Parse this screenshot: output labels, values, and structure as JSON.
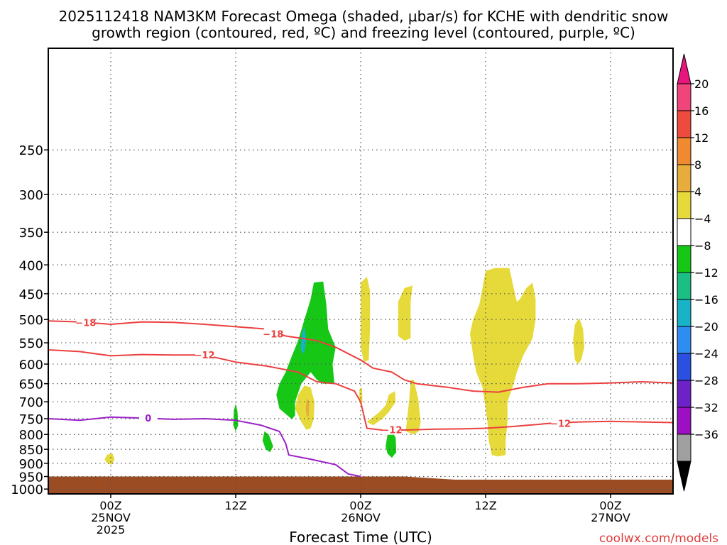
{
  "chart_data": {
    "type": "contour",
    "title_line1": "2025112418 NAM3KM Forecast Omega (shaded, μbar/s) for KCHE with dendritic snow",
    "title_line2": "growth region (contoured, red, ºC) and freezing level (contoured, purple, ºC)",
    "xlabel": "Forecast Time (UTC)",
    "x_range_hours": [
      -10,
      90
    ],
    "y_range_hPa": [
      165,
      1020
    ],
    "y_ticks": [
      250,
      300,
      350,
      400,
      450,
      500,
      550,
      600,
      650,
      700,
      750,
      800,
      850,
      900,
      950,
      1000
    ],
    "x_ticks": [
      {
        "hour": 0,
        "line1": "00Z",
        "line2": "25NOV",
        "line3": "2025"
      },
      {
        "hour": 20,
        "line1": "12Z",
        "line2": "",
        "line3": ""
      },
      {
        "hour": 40,
        "line1": "00Z",
        "line2": "26NOV",
        "line3": ""
      },
      {
        "hour": 60,
        "line1": "12Z",
        "line2": "",
        "line3": ""
      },
      {
        "hour": 80,
        "line1": "00Z",
        "line2": "27NOV",
        "line3": ""
      }
    ],
    "colorbar": {
      "labels": [
        "20",
        "16",
        "12",
        "8",
        "4",
        "−4",
        "−8",
        "−12",
        "−16",
        "−20",
        "−24",
        "−28",
        "−32",
        "−36"
      ],
      "colors": [
        "#f0457a",
        "#ee4a3d",
        "#f08a30",
        "#e6ac3c",
        "#e6d93a",
        "#ffffff",
        "#16c716",
        "#1bbf84",
        "#19b3c8",
        "#2f8cf0",
        "#2b4fe0",
        "#6d22c8",
        "#9a10c2",
        "#a0a0a0"
      ],
      "top_arrow_color": "#e8157d",
      "bottom_arrow_color": "#000000"
    },
    "ground_color": "#9c4c23",
    "contours": [
      {
        "name": "dgz-minus18",
        "color": "#ec4040",
        "label": "−18",
        "points": [
          [
            -10,
            503
          ],
          [
            -5,
            505
          ],
          [
            0,
            510
          ],
          [
            5,
            505
          ],
          [
            10,
            506
          ],
          [
            15,
            510
          ],
          [
            20,
            515
          ],
          [
            25,
            520
          ],
          [
            28,
            535
          ],
          [
            33,
            545
          ],
          [
            36,
            560
          ],
          [
            40,
            590
          ],
          [
            42,
            610
          ],
          [
            45,
            620
          ],
          [
            47,
            640
          ],
          [
            49,
            650
          ],
          [
            54,
            660
          ],
          [
            58,
            670
          ],
          [
            62,
            673
          ],
          [
            66,
            660
          ],
          [
            70,
            650
          ],
          [
            75,
            650
          ],
          [
            80,
            648
          ],
          [
            85,
            645
          ],
          [
            90,
            648
          ]
        ],
        "label_points": [
          [
            -4,
            506
          ],
          [
            26,
            530
          ]
        ]
      },
      {
        "name": "dgz-minus12",
        "color": "#ec4040",
        "label": "−12",
        "points": [
          [
            -10,
            566
          ],
          [
            -5,
            570
          ],
          [
            0,
            580
          ],
          [
            5,
            577
          ],
          [
            10,
            578
          ],
          [
            15,
            578
          ],
          [
            20,
            595
          ],
          [
            25,
            605
          ],
          [
            30,
            620
          ],
          [
            33,
            645
          ],
          [
            36,
            650
          ],
          [
            39,
            670
          ],
          [
            40,
            700
          ],
          [
            41,
            780
          ],
          [
            44,
            787
          ],
          [
            48,
            785
          ],
          [
            52,
            783
          ],
          [
            56,
            782
          ],
          [
            60,
            780
          ],
          [
            64,
            775
          ],
          [
            70,
            765
          ],
          [
            75,
            760
          ],
          [
            80,
            758
          ],
          [
            85,
            760
          ],
          [
            90,
            762
          ]
        ],
        "label_points": [
          [
            15,
            578
          ],
          [
            45,
            785
          ],
          [
            72,
            764
          ]
        ]
      },
      {
        "name": "freezing-level",
        "color": "#9a1fc8",
        "label": "0",
        "points": [
          [
            -10,
            750
          ],
          [
            -5,
            755
          ],
          [
            0,
            745
          ],
          [
            5,
            748
          ],
          [
            10,
            752
          ],
          [
            15,
            750
          ],
          [
            20,
            755
          ],
          [
            24,
            770
          ],
          [
            27,
            790
          ],
          [
            28,
            830
          ],
          [
            28.5,
            870
          ],
          [
            32,
            885
          ],
          [
            36,
            905
          ],
          [
            38,
            940
          ],
          [
            40,
            950
          ]
        ],
        "label_points": [
          [
            6,
            748
          ]
        ]
      }
    ],
    "fills": [
      {
        "name": "upward-motion-green-main",
        "color": "#16c716",
        "value": "−4 to −8",
        "points": [
          [
            29,
            752
          ],
          [
            27,
            720
          ],
          [
            26.5,
            680
          ],
          [
            27,
            650
          ],
          [
            28,
            620
          ],
          [
            29,
            580
          ],
          [
            30,
            545
          ],
          [
            31,
            500
          ],
          [
            32,
            460
          ],
          [
            32.5,
            430
          ],
          [
            34,
            428
          ],
          [
            34.5,
            470
          ],
          [
            34.8,
            520
          ],
          [
            36,
            560
          ],
          [
            35.5,
            600
          ],
          [
            35.8,
            650
          ],
          [
            34,
            650
          ],
          [
            33,
            640
          ],
          [
            32,
            620
          ],
          [
            30.5,
            650
          ],
          [
            29.5,
            700
          ],
          [
            29.5,
            740
          ]
        ]
      },
      {
        "name": "upward-motion-cyan-core",
        "color": "#19b3c8",
        "value": "−12 to −16",
        "points": [
          [
            30.4,
            560
          ],
          [
            30.6,
            530
          ],
          [
            31,
            515
          ],
          [
            31.3,
            545
          ],
          [
            31,
            570
          ],
          [
            30.6,
            575
          ]
        ]
      },
      {
        "name": "upward-motion-green-small-1",
        "color": "#16c716",
        "value": "−4 to −8",
        "points": [
          [
            19.6,
            770
          ],
          [
            19.7,
            725
          ],
          [
            20,
            705
          ],
          [
            20.3,
            730
          ],
          [
            20.4,
            770
          ],
          [
            20,
            790
          ]
        ]
      },
      {
        "name": "upward-motion-green-small-2",
        "color": "#16c716",
        "value": "−4 to −8",
        "points": [
          [
            24.3,
            820
          ],
          [
            24.6,
            790
          ],
          [
            25.3,
            800
          ],
          [
            26,
            840
          ],
          [
            25.5,
            860
          ],
          [
            24.8,
            850
          ]
        ]
      },
      {
        "name": "upward-motion-green-small-3",
        "color": "#16c716",
        "value": "−4 to −8",
        "points": [
          [
            44,
            840
          ],
          [
            44.3,
            800
          ],
          [
            45,
            790
          ],
          [
            45.6,
            810
          ],
          [
            45.7,
            860
          ],
          [
            45,
            880
          ],
          [
            44.3,
            865
          ]
        ]
      },
      {
        "name": "downward-yellow-low",
        "color": "#e6d93a",
        "value": "4 to 8",
        "points": [
          [
            -1,
            885
          ],
          [
            -0.5,
            868
          ],
          [
            0.3,
            865
          ],
          [
            0.6,
            885
          ],
          [
            0.2,
            905
          ],
          [
            -0.6,
            900
          ]
        ]
      },
      {
        "name": "downward-yellow-center",
        "color": "#e6d93a",
        "value": "4 to 8",
        "points": [
          [
            30.5,
            760
          ],
          [
            29.5,
            720
          ],
          [
            30,
            680
          ],
          [
            31,
            655
          ],
          [
            32,
            660
          ],
          [
            32.6,
            700
          ],
          [
            32.5,
            750
          ],
          [
            32,
            780
          ],
          [
            31.3,
            785
          ]
        ]
      },
      {
        "name": "downward-orange-center",
        "color": "#e6ac3c",
        "value": "8 to 12",
        "points": [
          [
            31.2,
            720
          ],
          [
            31.4,
            690
          ],
          [
            31.8,
            700
          ],
          [
            31.7,
            740
          ],
          [
            31.4,
            745
          ]
        ]
      },
      {
        "name": "downward-yellow-1",
        "color": "#e6d93a",
        "value": "4 to 8",
        "points": [
          [
            40,
            470
          ],
          [
            40,
            430
          ],
          [
            41,
            420
          ],
          [
            41.5,
            445
          ],
          [
            41.5,
            520
          ],
          [
            41.3,
            590
          ],
          [
            40.5,
            595
          ],
          [
            40,
            560
          ]
        ]
      },
      {
        "name": "downward-yellow-2",
        "color": "#e6d93a",
        "value": "4 to 8",
        "points": [
          [
            46,
            535
          ],
          [
            46,
            465
          ],
          [
            47,
            440
          ],
          [
            48.3,
            435
          ],
          [
            48,
            465
          ],
          [
            48,
            540
          ],
          [
            47,
            545
          ]
        ]
      },
      {
        "name": "downward-yellow-3",
        "color": "#e6d93a",
        "value": "4 to 8",
        "points": [
          [
            39.8,
            700
          ],
          [
            39.8,
            665
          ],
          [
            40.2,
            660
          ],
          [
            40.3,
            700
          ],
          [
            40,
            710
          ]
        ]
      },
      {
        "name": "downward-yellow-4",
        "color": "#e6d93a",
        "value": "4 to 8",
        "points": [
          [
            41,
            760
          ],
          [
            43,
            730
          ],
          [
            44,
            710
          ],
          [
            44.5,
            680
          ],
          [
            45.5,
            670
          ],
          [
            45.6,
            700
          ],
          [
            44.5,
            730
          ],
          [
            43.5,
            750
          ],
          [
            42,
            770
          ]
        ]
      },
      {
        "name": "downward-yellow-5",
        "color": "#e6d93a",
        "value": "4 to 8",
        "points": [
          [
            47.2,
            790
          ],
          [
            47.5,
            740
          ],
          [
            47.8,
            690
          ],
          [
            48,
            640
          ],
          [
            48.5,
            640
          ],
          [
            49.2,
            690
          ],
          [
            49.6,
            760
          ],
          [
            49.3,
            790
          ],
          [
            48.5,
            800
          ]
        ]
      },
      {
        "name": "downward-yellow-big",
        "color": "#e6d93a",
        "value": "4 to 8",
        "points": [
          [
            61,
            870
          ],
          [
            60.5,
            820
          ],
          [
            60.3,
            760
          ],
          [
            60,
            720
          ],
          [
            59.5,
            660
          ],
          [
            58.5,
            620
          ],
          [
            58,
            580
          ],
          [
            57.5,
            530
          ],
          [
            58,
            500
          ],
          [
            59,
            470
          ],
          [
            59.5,
            440
          ],
          [
            60,
            410
          ],
          [
            61.5,
            405
          ],
          [
            63.8,
            405
          ],
          [
            64.5,
            440
          ],
          [
            65,
            465
          ],
          [
            65.5,
            460
          ],
          [
            66.5,
            440
          ],
          [
            67.5,
            430
          ],
          [
            68,
            460
          ],
          [
            68,
            500
          ],
          [
            67.5,
            540
          ],
          [
            66,
            580
          ],
          [
            65,
            620
          ],
          [
            64.5,
            650
          ],
          [
            63.5,
            700
          ],
          [
            63.5,
            760
          ],
          [
            63.2,
            820
          ],
          [
            63.2,
            870
          ],
          [
            62,
            875
          ]
        ]
      },
      {
        "name": "downward-yellow-right",
        "color": "#e6d93a",
        "value": "4 to 8",
        "points": [
          [
            74.3,
            590
          ],
          [
            74,
            545
          ],
          [
            74.3,
            510
          ],
          [
            75,
            497
          ],
          [
            75.6,
            520
          ],
          [
            75.8,
            560
          ],
          [
            75.3,
            590
          ],
          [
            74.8,
            600
          ]
        ]
      }
    ]
  },
  "footer": {
    "credit": "coolwx.com/models"
  }
}
